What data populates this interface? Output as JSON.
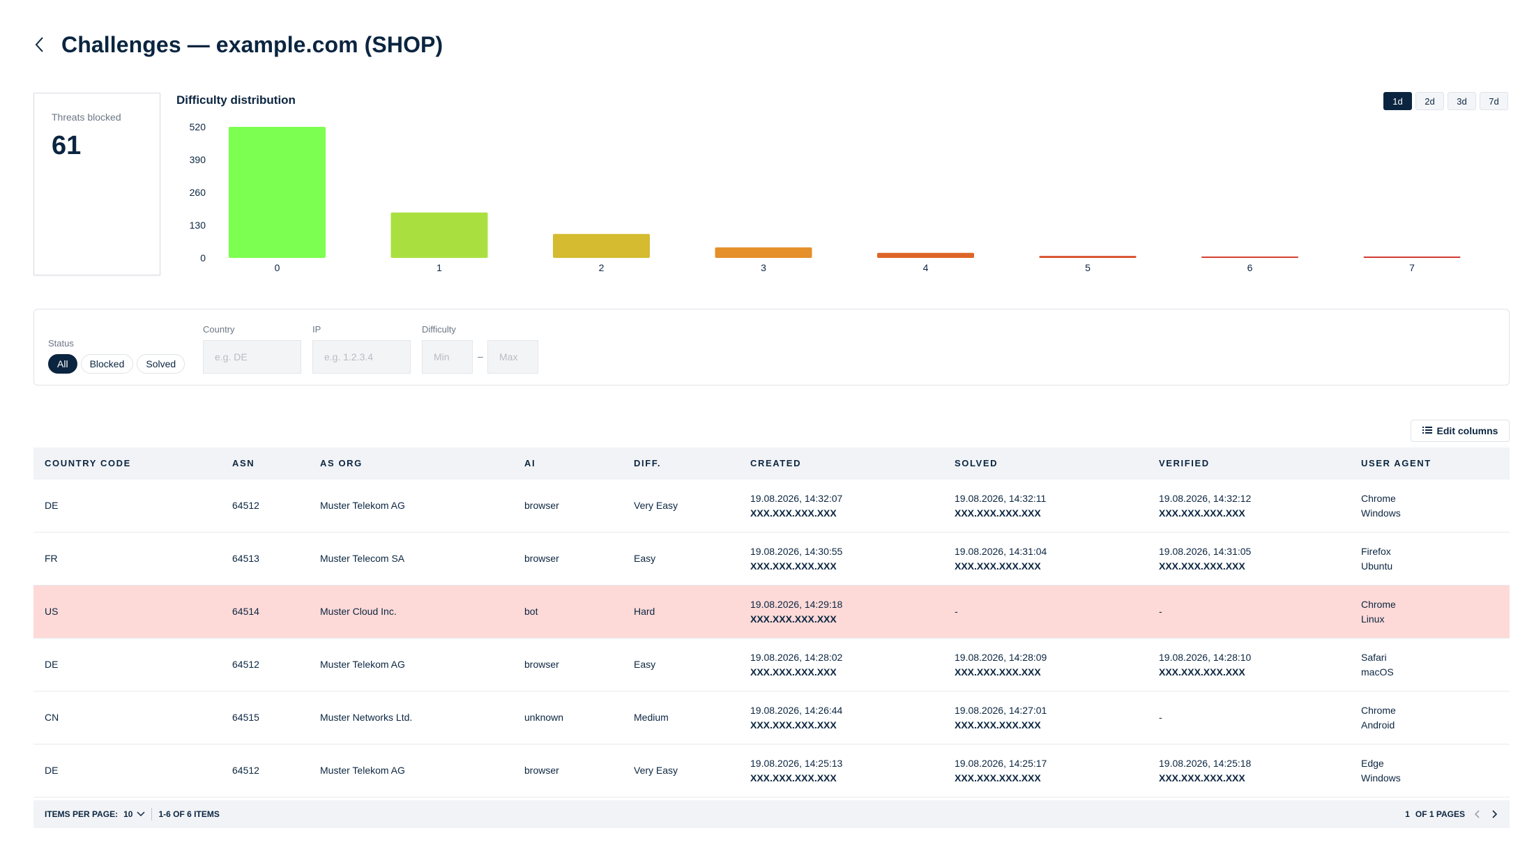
{
  "header": {
    "title": "Challenges — example.com (SHOP)"
  },
  "stat": {
    "label": "Threats blocked",
    "value": "61"
  },
  "chart_data": {
    "type": "bar",
    "title": "Difficulty distribution",
    "xlabel": "",
    "ylabel": "",
    "categories": [
      "0",
      "1",
      "2",
      "3",
      "4",
      "5",
      "6",
      "7"
    ],
    "values": [
      520,
      180,
      95,
      42,
      20,
      8,
      4,
      2
    ],
    "colors": [
      "#7cff50",
      "#a9e040",
      "#d4bb30",
      "#e5902a",
      "#dd6528",
      "#d9502c",
      "#d4402e",
      "#d03a30"
    ],
    "yticks": [
      "520",
      "390",
      "260",
      "130",
      "0"
    ],
    "ylim": [
      0,
      520
    ],
    "grid": false,
    "legend": "none"
  },
  "range": {
    "options": [
      "1d",
      "2d",
      "3d",
      "7d"
    ],
    "selected": "1d"
  },
  "filters": {
    "status_label": "Status",
    "status_options": [
      "All",
      "Blocked",
      "Solved"
    ],
    "status_selected": "All",
    "country_label": "Country",
    "country_placeholder": "e.g. DE",
    "ip_label": "IP",
    "ip_placeholder": "e.g. 1.2.3.4",
    "difficulty_label": "Difficulty",
    "min_placeholder": "Min",
    "max_placeholder": "Max",
    "range_sep": "–"
  },
  "edit_columns_label": "Edit columns",
  "table": {
    "columns": [
      "COUNTRY CODE",
      "ASN",
      "AS ORG",
      "AI",
      "DIFF.",
      "CREATED",
      "SOLVED",
      "VERIFIED",
      "USER AGENT"
    ],
    "rows": [
      {
        "country": "DE",
        "asn": "64512",
        "org": "Muster Telekom AG",
        "ai": "browser",
        "diff": "Very Easy",
        "created": "19.08.2026, 14:32:07",
        "created_ip": "XXX.XXX.XXX.XXX",
        "solved": "19.08.2026, 14:32:11",
        "solved_ip": "XXX.XXX.XXX.XXX",
        "verified": "19.08.2026, 14:32:12",
        "verified_ip": "XXX.XXX.XXX.XXX",
        "browser": "Chrome",
        "os": "Windows"
      },
      {
        "country": "FR",
        "asn": "64513",
        "org": "Muster Telecom SA",
        "ai": "browser",
        "diff": "Easy",
        "created": "19.08.2026, 14:30:55",
        "created_ip": "XXX.XXX.XXX.XXX",
        "solved": "19.08.2026, 14:31:04",
        "solved_ip": "XXX.XXX.XXX.XXX",
        "verified": "19.08.2026, 14:31:05",
        "verified_ip": "XXX.XXX.XXX.XXX",
        "browser": "Firefox",
        "os": "Ubuntu"
      },
      {
        "country": "US",
        "asn": "64514",
        "org": "Muster Cloud Inc.",
        "ai": "bot",
        "diff": "Hard",
        "created": "19.08.2026, 14:29:18",
        "created_ip": "XXX.XXX.XXX.XXX",
        "solved": "-",
        "solved_ip": "",
        "verified": "-",
        "verified_ip": "",
        "browser": "Chrome",
        "os": "Linux",
        "highlight": true
      },
      {
        "country": "DE",
        "asn": "64512",
        "org": "Muster Telekom AG",
        "ai": "browser",
        "diff": "Easy",
        "created": "19.08.2026, 14:28:02",
        "created_ip": "XXX.XXX.XXX.XXX",
        "solved": "19.08.2026, 14:28:09",
        "solved_ip": "XXX.XXX.XXX.XXX",
        "verified": "19.08.2026, 14:28:10",
        "verified_ip": "XXX.XXX.XXX.XXX",
        "browser": "Safari",
        "os": "macOS"
      },
      {
        "country": "CN",
        "asn": "64515",
        "org": "Muster Networks Ltd.",
        "ai": "unknown",
        "diff": "Medium",
        "created": "19.08.2026, 14:26:44",
        "created_ip": "XXX.XXX.XXX.XXX",
        "solved": "19.08.2026, 14:27:01",
        "solved_ip": "XXX.XXX.XXX.XXX",
        "verified": "-",
        "verified_ip": "",
        "browser": "Chrome",
        "os": "Android"
      },
      {
        "country": "DE",
        "asn": "64512",
        "org": "Muster Telekom AG",
        "ai": "browser",
        "diff": "Very Easy",
        "created": "19.08.2026, 14:25:13",
        "created_ip": "XXX.XXX.XXX.XXX",
        "solved": "19.08.2026, 14:25:17",
        "solved_ip": "XXX.XXX.XXX.XXX",
        "verified": "19.08.2026, 14:25:18",
        "verified_ip": "XXX.XXX.XXX.XXX",
        "browser": "Edge",
        "os": "Windows"
      }
    ]
  },
  "pagination": {
    "items_per_page_label": "ITEMS PER PAGE:",
    "items_per_page": "10",
    "range_text": "1-6 OF 6 ITEMS",
    "current_page": "1",
    "pages_text": "OF 1 PAGES"
  },
  "icons": {
    "back": "chevron-left-icon",
    "edit_columns": "list-icon",
    "per_page": "chevron-down-icon",
    "prev": "chevron-left-icon",
    "next": "chevron-right-icon"
  }
}
